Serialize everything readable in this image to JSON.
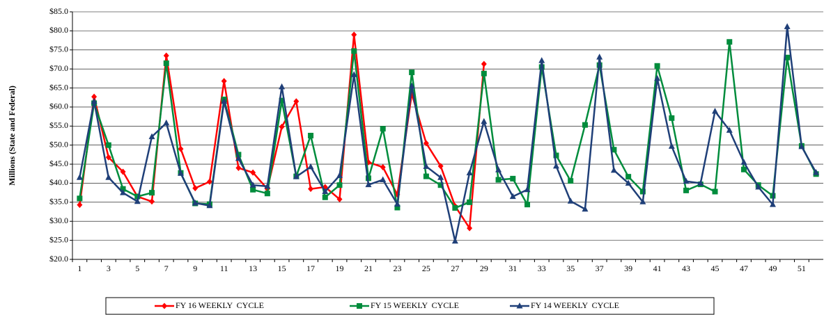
{
  "chart_data": {
    "type": "line",
    "y_label": "Millions (State and Federal)",
    "categories": [
      1,
      null,
      3,
      null,
      5,
      null,
      7,
      null,
      9,
      null,
      11,
      null,
      13,
      null,
      15,
      null,
      17,
      null,
      19,
      null,
      21,
      null,
      23,
      null,
      25,
      null,
      27,
      null,
      29,
      null,
      31,
      null,
      33,
      null,
      35,
      null,
      37,
      null,
      39,
      null,
      41,
      null,
      43,
      null,
      45,
      null,
      47,
      null,
      49,
      null,
      51,
      null
    ],
    "ylim": [
      20,
      85
    ],
    "yticks": [
      {
        "value": 20,
        "label": "$20.0"
      },
      {
        "value": 25,
        "label": "$25.0"
      },
      {
        "value": 30,
        "label": "$30.0"
      },
      {
        "value": 35,
        "label": "$35.0"
      },
      {
        "value": 40,
        "label": "$40.0"
      },
      {
        "value": 45,
        "label": "$45.0"
      },
      {
        "value": 50,
        "label": "$50.0"
      },
      {
        "value": 55,
        "label": "$55.0"
      },
      {
        "value": 60,
        "label": "$60.0"
      },
      {
        "value": 65,
        "label": "$65.0"
      },
      {
        "value": 70,
        "label": "$70.0"
      },
      {
        "value": 75,
        "label": "$75.0"
      },
      {
        "value": 80,
        "label": "$80.0"
      },
      {
        "value": 85,
        "label": "$85.0"
      }
    ],
    "grid": true,
    "legend": "bottom",
    "series": [
      {
        "name": "FY 16 WEEKLY  CYCLE",
        "color": "#ff0000",
        "marker": "diamond",
        "values": [
          34.3,
          62.7,
          46.8,
          43,
          36.5,
          35.2,
          73.5,
          49,
          38.7,
          40.4,
          66.8,
          44,
          42.8,
          38.5,
          54.8,
          61.5,
          38.5,
          39,
          35.8,
          79,
          45.5,
          44.2,
          37,
          63.5,
          50.5,
          44.5,
          34,
          28.2,
          71.3,
          null,
          null,
          null,
          null,
          null,
          null,
          null,
          null,
          null,
          null,
          null,
          null,
          null,
          null,
          null,
          null,
          null,
          null,
          null,
          null,
          null,
          null,
          null
        ]
      },
      {
        "name": "FY 15 WEEKLY  CYCLE",
        "color": "#008c3c",
        "marker": "square",
        "values": [
          36,
          61,
          50,
          38.5,
          36.5,
          37.5,
          71.5,
          42.7,
          34.7,
          34.5,
          62,
          47.5,
          38.3,
          37.3,
          61.7,
          41.8,
          52.5,
          36.3,
          39.5,
          74.7,
          41.3,
          54.3,
          33.6,
          69.1,
          41.8,
          39.5,
          33.5,
          35,
          68.8,
          40.9,
          41.2,
          34.4,
          70.5,
          47.3,
          40.6,
          55.3,
          71,
          48.8,
          41.7,
          37.8,
          70.8,
          57.1,
          38.1,
          39.7,
          37.8,
          77.1,
          43.6,
          39.5,
          36.7,
          73,
          49.8,
          42.4
        ]
      },
      {
        "name": "FY 14 WEEKLY  CYCLE",
        "color": "#1f3f78",
        "marker": "triangle",
        "values": [
          41.5,
          61.5,
          41.5,
          37.5,
          35.2,
          52.2,
          55.8,
          42.6,
          34.8,
          34.1,
          61.5,
          46.5,
          39.5,
          39.2,
          65.3,
          41.7,
          44.3,
          37.8,
          42,
          68.5,
          39.6,
          40.9,
          34.5,
          65.5,
          44.4,
          41.5,
          24.8,
          42.7,
          56.2,
          43.5,
          36.5,
          38.3,
          72.2,
          44.5,
          35.3,
          33.2,
          73.1,
          43.4,
          40,
          35.1,
          67.5,
          49.7,
          40.5,
          40,
          58.9,
          53.9,
          45.5,
          39,
          34.4,
          81.1,
          49.6,
          42.8
        ]
      }
    ]
  }
}
